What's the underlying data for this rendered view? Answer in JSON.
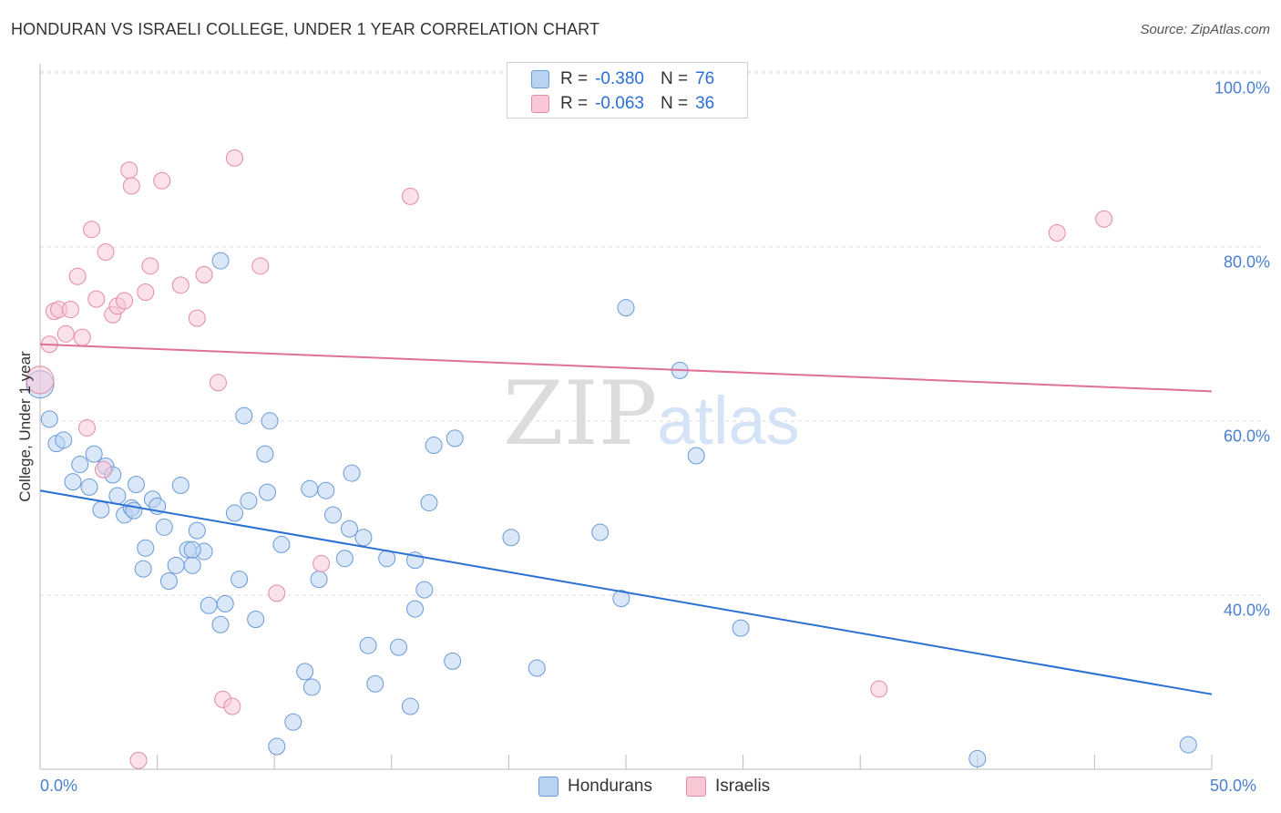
{
  "header": {
    "title": "HONDURAN VS ISRAELI COLLEGE, UNDER 1 YEAR CORRELATION CHART",
    "source": "Source: ZipAtlas.com"
  },
  "watermark": {
    "zip": "ZIP",
    "atlas": "atlas"
  },
  "legend": {
    "rows": [
      {
        "r_label": "R = ",
        "r_value": "-0.380",
        "n_label": "N = ",
        "n_value": "76"
      },
      {
        "r_label": "R = ",
        "r_value": "-0.063",
        "n_label": "N = ",
        "n_value": "36"
      }
    ]
  },
  "colors": {
    "blue_fill": "#b9d3f3",
    "blue_stroke": "#6a9ad8",
    "blue_line": "#2b70d3",
    "pink_fill": "#f8c8d7",
    "pink_stroke": "#e48aa8",
    "pink_line": "#e07098",
    "tick_text": "#4a7fd0",
    "grid": "#dddddd"
  },
  "chart_data": {
    "type": "scatter",
    "title": "HONDURAN VS ISRAELI COLLEGE, UNDER 1 YEAR CORRELATION CHART",
    "xlabel": "",
    "ylabel": "College, Under 1 year",
    "xlim": [
      0,
      50
    ],
    "ylim": [
      22,
      102
    ],
    "x_ticks": [
      "0.0%",
      "50.0%"
    ],
    "y_ticks": [
      {
        "value": 100,
        "label": "100.0%"
      },
      {
        "value": 80,
        "label": "80.0%"
      },
      {
        "value": 60,
        "label": "60.0%"
      },
      {
        "value": 40,
        "label": "40.0%"
      }
    ],
    "grid": "horizontal dashed",
    "legend_position": "top-center and bottom",
    "series": [
      {
        "name": "Hondurans",
        "color": "#b9d3f3",
        "trend": {
          "x": [
            0,
            50
          ],
          "y": [
            53.8,
            30.4
          ]
        },
        "points": [
          [
            0.0,
            66.0
          ],
          [
            0.4,
            62.0
          ],
          [
            0.7,
            59.2
          ],
          [
            1.0,
            59.6
          ],
          [
            1.4,
            54.8
          ],
          [
            1.7,
            56.8
          ],
          [
            2.1,
            54.2
          ],
          [
            2.3,
            58.0
          ],
          [
            2.6,
            51.6
          ],
          [
            2.8,
            56.6
          ],
          [
            3.1,
            55.6
          ],
          [
            3.3,
            53.2
          ],
          [
            3.6,
            51.0
          ],
          [
            3.9,
            51.8
          ],
          [
            4.1,
            54.5
          ],
          [
            4.4,
            44.8
          ],
          [
            4.5,
            47.2
          ],
          [
            4.8,
            52.8
          ],
          [
            5.0,
            52.0
          ],
          [
            5.3,
            49.6
          ],
          [
            5.5,
            43.4
          ],
          [
            5.8,
            45.2
          ],
          [
            6.0,
            54.4
          ],
          [
            6.3,
            47.0
          ],
          [
            6.5,
            45.2
          ],
          [
            6.7,
            49.2
          ],
          [
            7.0,
            46.8
          ],
          [
            7.2,
            40.6
          ],
          [
            7.7,
            38.4
          ],
          [
            7.7,
            80.2
          ],
          [
            7.9,
            40.8
          ],
          [
            8.3,
            51.2
          ],
          [
            8.5,
            43.6
          ],
          [
            8.7,
            62.4
          ],
          [
            8.9,
            52.6
          ],
          [
            9.2,
            39.0
          ],
          [
            9.6,
            58.0
          ],
          [
            9.7,
            53.6
          ],
          [
            9.8,
            61.8
          ],
          [
            10.1,
            24.4
          ],
          [
            10.3,
            47.6
          ],
          [
            10.8,
            27.2
          ],
          [
            11.3,
            33.0
          ],
          [
            11.6,
            31.2
          ],
          [
            11.5,
            54.0
          ],
          [
            11.9,
            43.6
          ],
          [
            12.2,
            53.8
          ],
          [
            12.5,
            51.0
          ],
          [
            13.0,
            46.0
          ],
          [
            13.2,
            49.4
          ],
          [
            13.3,
            55.8
          ],
          [
            13.8,
            48.4
          ],
          [
            14.0,
            36.0
          ],
          [
            14.3,
            31.6
          ],
          [
            14.8,
            46.0
          ],
          [
            15.3,
            35.8
          ],
          [
            15.8,
            29.0
          ],
          [
            16.0,
            40.2
          ],
          [
            16.0,
            45.8
          ],
          [
            16.4,
            42.4
          ],
          [
            16.6,
            52.4
          ],
          [
            16.8,
            59.0
          ],
          [
            17.6,
            34.2
          ],
          [
            17.7,
            59.8
          ],
          [
            20.1,
            48.4
          ],
          [
            21.2,
            33.4
          ],
          [
            23.9,
            49.0
          ],
          [
            24.8,
            41.4
          ],
          [
            25.0,
            74.8
          ],
          [
            27.3,
            67.6
          ],
          [
            28.0,
            57.8
          ],
          [
            29.9,
            38.0
          ],
          [
            40.0,
            23.0
          ],
          [
            49.0,
            24.6
          ],
          [
            6.5,
            47.0
          ],
          [
            4.0,
            51.5
          ]
        ]
      },
      {
        "name": "Israelis",
        "color": "#f8c8d7",
        "trend": {
          "x": [
            0,
            50
          ],
          "y": [
            70.6,
            65.2
          ]
        },
        "points": [
          [
            0.0,
            66.5
          ],
          [
            0.4,
            70.6
          ],
          [
            0.6,
            74.4
          ],
          [
            0.8,
            74.6
          ],
          [
            1.1,
            71.8
          ],
          [
            1.3,
            74.6
          ],
          [
            1.6,
            78.4
          ],
          [
            1.8,
            71.4
          ],
          [
            2.0,
            61.0
          ],
          [
            2.2,
            83.8
          ],
          [
            2.4,
            75.8
          ],
          [
            2.7,
            56.2
          ],
          [
            2.8,
            81.2
          ],
          [
            3.1,
            74.0
          ],
          [
            3.3,
            75.0
          ],
          [
            3.6,
            75.6
          ],
          [
            3.8,
            90.6
          ],
          [
            3.9,
            88.8
          ],
          [
            4.2,
            22.8
          ],
          [
            4.5,
            76.6
          ],
          [
            4.7,
            79.6
          ],
          [
            5.2,
            89.4
          ],
          [
            6.0,
            77.4
          ],
          [
            6.7,
            73.6
          ],
          [
            7.0,
            78.6
          ],
          [
            7.6,
            66.2
          ],
          [
            7.8,
            29.8
          ],
          [
            8.2,
            29.0
          ],
          [
            8.3,
            92.0
          ],
          [
            9.4,
            79.6
          ],
          [
            10.1,
            42.0
          ],
          [
            12.0,
            45.4
          ],
          [
            15.8,
            87.6
          ],
          [
            35.8,
            31.0
          ],
          [
            43.4,
            83.4
          ],
          [
            45.4,
            85.0
          ]
        ]
      }
    ]
  },
  "bottom_legend": [
    {
      "label": "Hondurans"
    },
    {
      "label": "Israelis"
    }
  ]
}
